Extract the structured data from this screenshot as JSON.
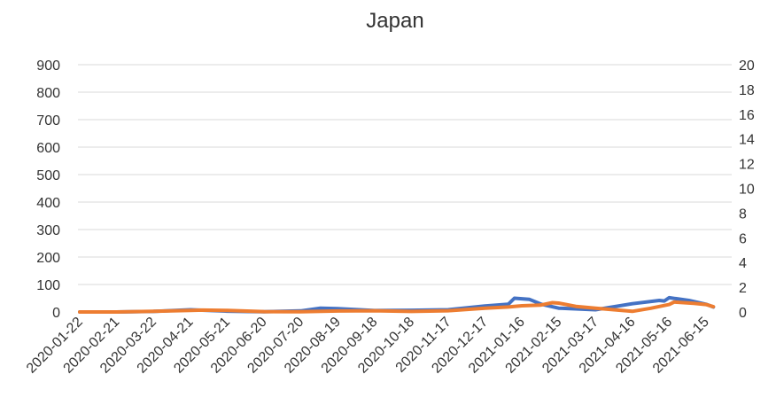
{
  "chart_data": {
    "type": "line",
    "title": "Japan",
    "xlabel": "",
    "ylabel_left": "",
    "ylabel_right": "",
    "grid": true,
    "legend": "none",
    "x_ticks": [
      "2020-01-22",
      "2020-02-21",
      "2020-03-22",
      "2020-04-21",
      "2020-05-21",
      "2020-06-20",
      "2020-07-20",
      "2020-08-19",
      "2020-09-18",
      "2020-10-18",
      "2020-11-17",
      "2020-12-17",
      "2021-01-16",
      "2021-02-15",
      "2021-03-17",
      "2021-04-16",
      "2021-05-16",
      "2021-06-15"
    ],
    "left_axis": {
      "ylim": [
        0,
        900
      ],
      "ticks": [
        0,
        100,
        200,
        300,
        400,
        500,
        600,
        700,
        800,
        900
      ]
    },
    "right_axis": {
      "ylim": [
        0,
        20
      ],
      "ticks": [
        0,
        2,
        4,
        6,
        8,
        10,
        12,
        14,
        16,
        18,
        20
      ]
    },
    "series": [
      {
        "axis": "left",
        "color": "#4472c4",
        "x": [
          "2020-01-22",
          "2020-02-21",
          "2020-03-22",
          "2020-04-21",
          "2020-05-21",
          "2020-06-20",
          "2020-07-20",
          "2020-08-05",
          "2020-08-19",
          "2020-09-18",
          "2020-10-18",
          "2020-11-17",
          "2020-12-17",
          "2021-01-05",
          "2021-01-10",
          "2021-01-16",
          "2021-01-22",
          "2021-02-01",
          "2021-02-15",
          "2021-03-17",
          "2021-04-16",
          "2021-05-08",
          "2021-05-12",
          "2021-05-16",
          "2021-06-01",
          "2021-06-15",
          "2021-06-21"
        ],
        "values": [
          0,
          0,
          2,
          8,
          3,
          1,
          4,
          14,
          12,
          5,
          6,
          8,
          22,
          28,
          50,
          48,
          46,
          28,
          14,
          8,
          30,
          42,
          40,
          52,
          42,
          28,
          18
        ]
      },
      {
        "axis": "right",
        "color": "#ed7d31",
        "x": [
          "2020-01-22",
          "2020-02-21",
          "2020-03-22",
          "2020-04-21",
          "2020-05-01",
          "2020-05-21",
          "2020-06-20",
          "2020-07-20",
          "2020-08-19",
          "2020-09-18",
          "2020-10-18",
          "2020-11-17",
          "2020-12-17",
          "2021-01-05",
          "2021-01-16",
          "2021-01-31",
          "2021-02-10",
          "2021-02-15",
          "2021-03-01",
          "2021-03-17",
          "2021-04-16",
          "2021-05-01",
          "2021-05-16",
          "2021-05-20",
          "2021-06-05",
          "2021-06-15",
          "2021-06-21"
        ],
        "values": [
          0,
          0,
          0.05,
          0.12,
          0.15,
          0.12,
          0.03,
          0.02,
          0.08,
          0.1,
          0.04,
          0.1,
          0.3,
          0.4,
          0.5,
          0.55,
          0.75,
          0.72,
          0.45,
          0.3,
          0.05,
          0.3,
          0.6,
          0.8,
          0.7,
          0.6,
          0.42
        ]
      }
    ]
  }
}
